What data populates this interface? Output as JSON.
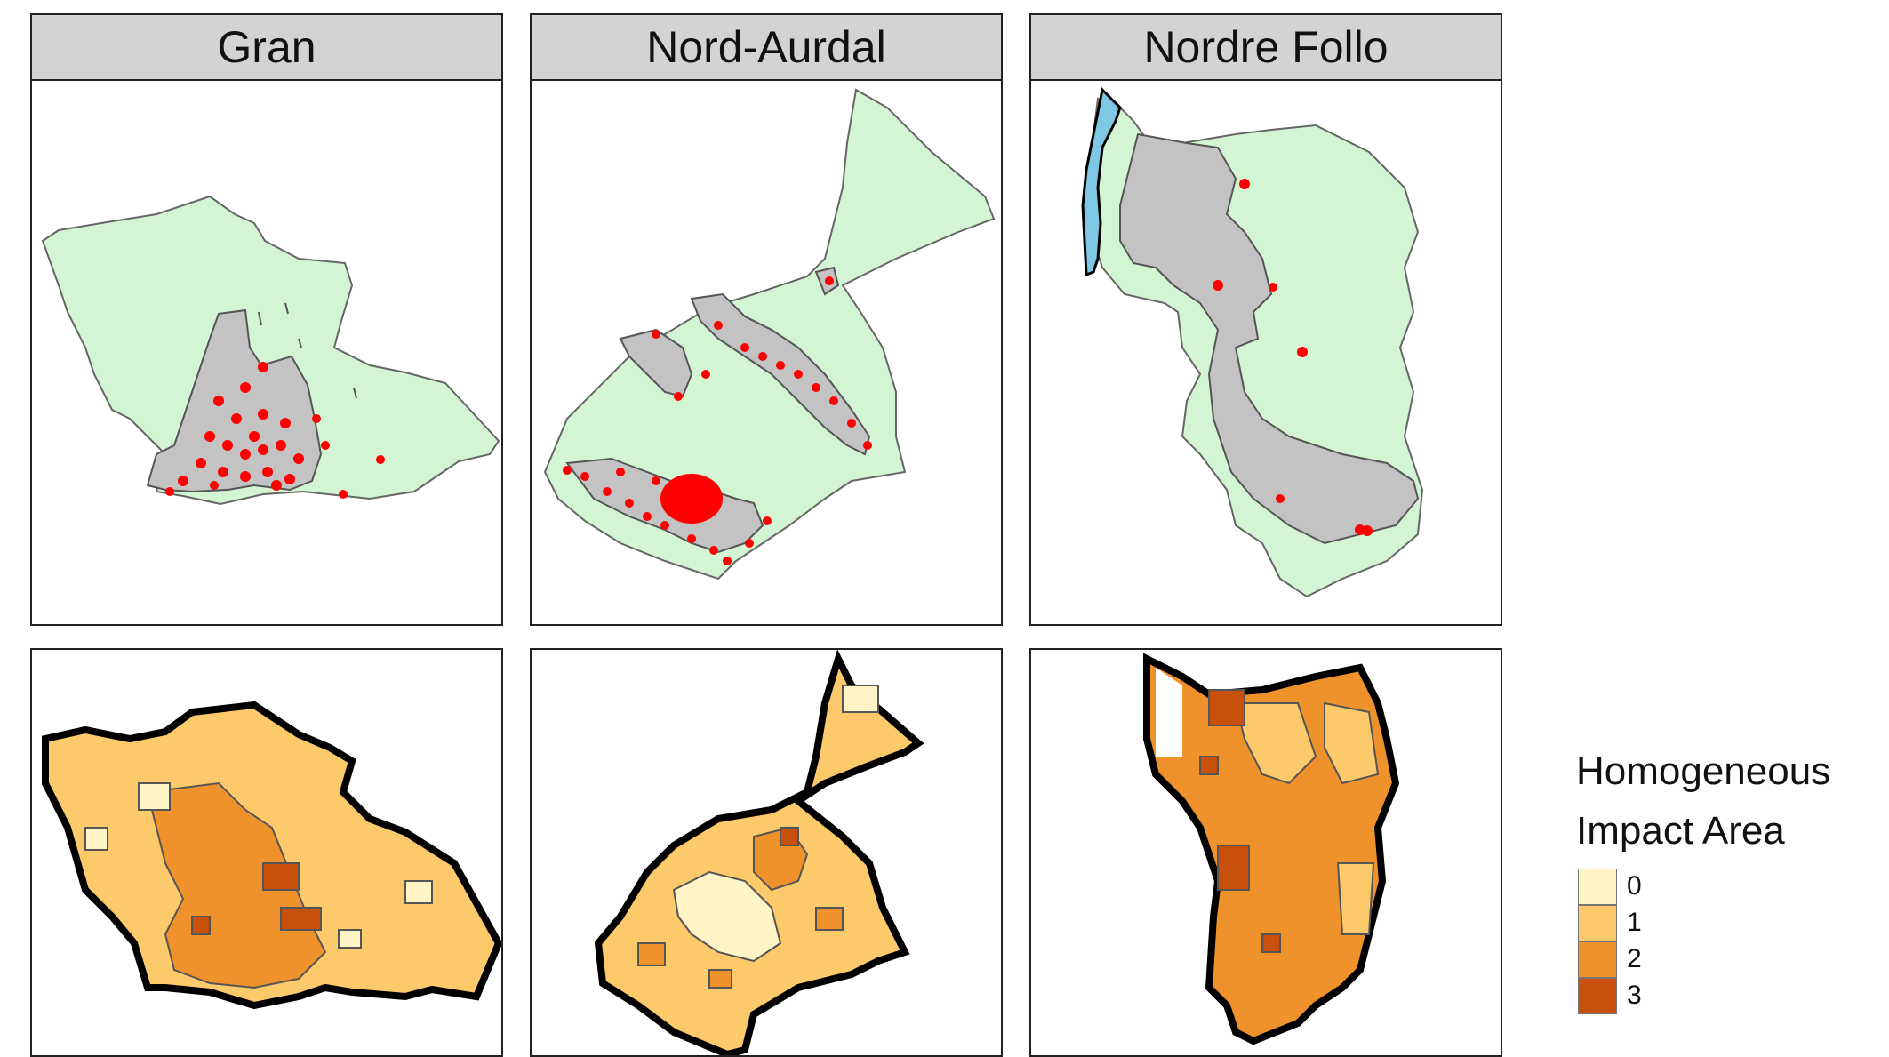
{
  "panels": [
    {
      "name": "Gran"
    },
    {
      "name": "Nord-Aurdal"
    },
    {
      "name": "Nordre Follo"
    }
  ],
  "colors": {
    "municipality_fill": "#d4f5d4",
    "built_area_fill": "#c3c3c3",
    "points": "#ff0000",
    "water": "#7ec8e3",
    "outline": "#000000"
  },
  "legend": {
    "title_line1": "Homogeneous",
    "title_line2": "Impact Area",
    "items": [
      {
        "label": "0",
        "color": "#fff4c6"
      },
      {
        "label": "1",
        "color": "#fcc96b"
      },
      {
        "label": "2",
        "color": "#f0922c"
      },
      {
        "label": "3",
        "color": "#c8500a"
      }
    ]
  }
}
